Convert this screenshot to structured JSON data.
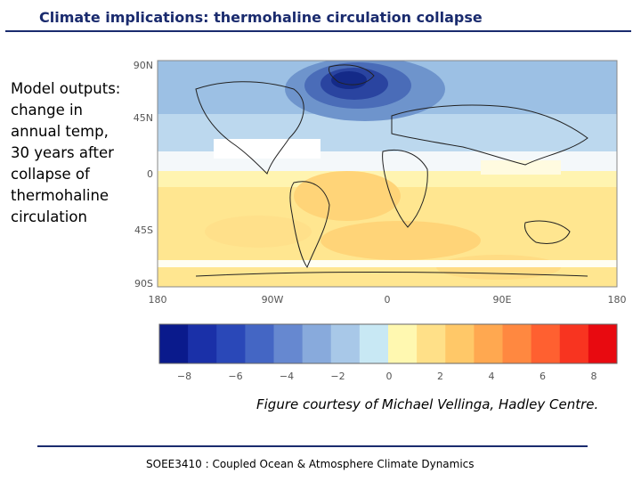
{
  "header": {
    "title": "Climate implications: thermohaline circulation collapse"
  },
  "caption": {
    "lines": [
      "Model outputs:",
      "change in",
      "annual temp,",
      "30 years after",
      "collapse of",
      "thermohaline",
      "circulation"
    ]
  },
  "map": {
    "lat_labels": [
      "90N",
      "45N",
      "0",
      "45S",
      "90S"
    ],
    "lon_labels": [
      "180",
      "90W",
      "0",
      "90E",
      "180"
    ]
  },
  "colorbar": {
    "colors": [
      "#0a1a8c",
      "#1a30a8",
      "#2a48b8",
      "#4466c4",
      "#6688d0",
      "#88aadc",
      "#a8c8e8",
      "#c8e8f4",
      "#fff8b0",
      "#ffe088",
      "#ffc868",
      "#ffa850",
      "#ff8840",
      "#ff6030",
      "#f83420",
      "#e80a10"
    ],
    "tick_labels": [
      "−8",
      "−6",
      "−4",
      "−2",
      "0",
      "2",
      "4",
      "6",
      "8"
    ]
  },
  "credit": "Figure courtesy of Michael Vellinga, Hadley Centre.",
  "footer": "SOEE3410 : Coupled Ocean & Atmosphere Climate Dynamics"
}
